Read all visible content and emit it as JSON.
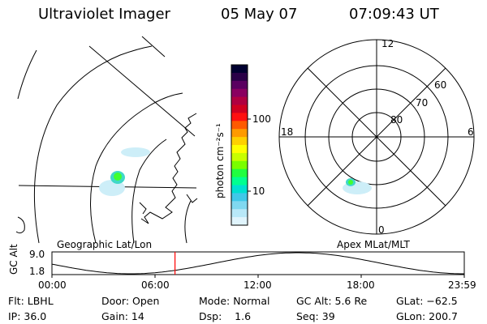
{
  "header": {
    "instrument": "Ultraviolet Imager",
    "date": "05 May 07",
    "time": "07:09:43 UT"
  },
  "colorbar": {
    "unit_label": "photon cm⁻²s⁻¹",
    "ticks": [
      "100",
      "10"
    ],
    "colors": [
      "#000030",
      "#2a0048",
      "#5a0060",
      "#8a0060",
      "#b00040",
      "#d00020",
      "#ff1010",
      "#ff5a00",
      "#ff9a00",
      "#ffd000",
      "#ffff00",
      "#c8ff00",
      "#7aff00",
      "#20ff40",
      "#00ff90",
      "#00e0d0",
      "#40c8e8",
      "#80d8f0",
      "#b8e8f8",
      "#e0f4fc"
    ]
  },
  "left_map": {
    "label": "Geographic Lat/Lon"
  },
  "polar_plot": {
    "label": "Apex MLat/MLT",
    "mlt_labels": {
      "top": "12",
      "left": "18",
      "right": "6",
      "bottom": "0"
    },
    "lat_labels": [
      "60",
      "70",
      "80"
    ]
  },
  "alt_plot": {
    "ylabel": "GC Alt",
    "ymax": "9.0",
    "ymin": "1.8",
    "x_ticks": [
      "00:00",
      "06:00",
      "12:00",
      "18:00",
      "23:59"
    ],
    "current_time_hours": 7.16
  },
  "info": {
    "flt": "Flt: LBHL",
    "ip": "IP: 36.0",
    "door": "Door: Open",
    "gain": "Gain: 14",
    "mode": "Mode: Normal",
    "dsp": "Dsp:    1.6",
    "gc_alt": "GC Alt: 5.6 Re",
    "seq": "Seq: 39",
    "glat": "GLat: −62.5",
    "glon": "GLon: 200.7"
  }
}
